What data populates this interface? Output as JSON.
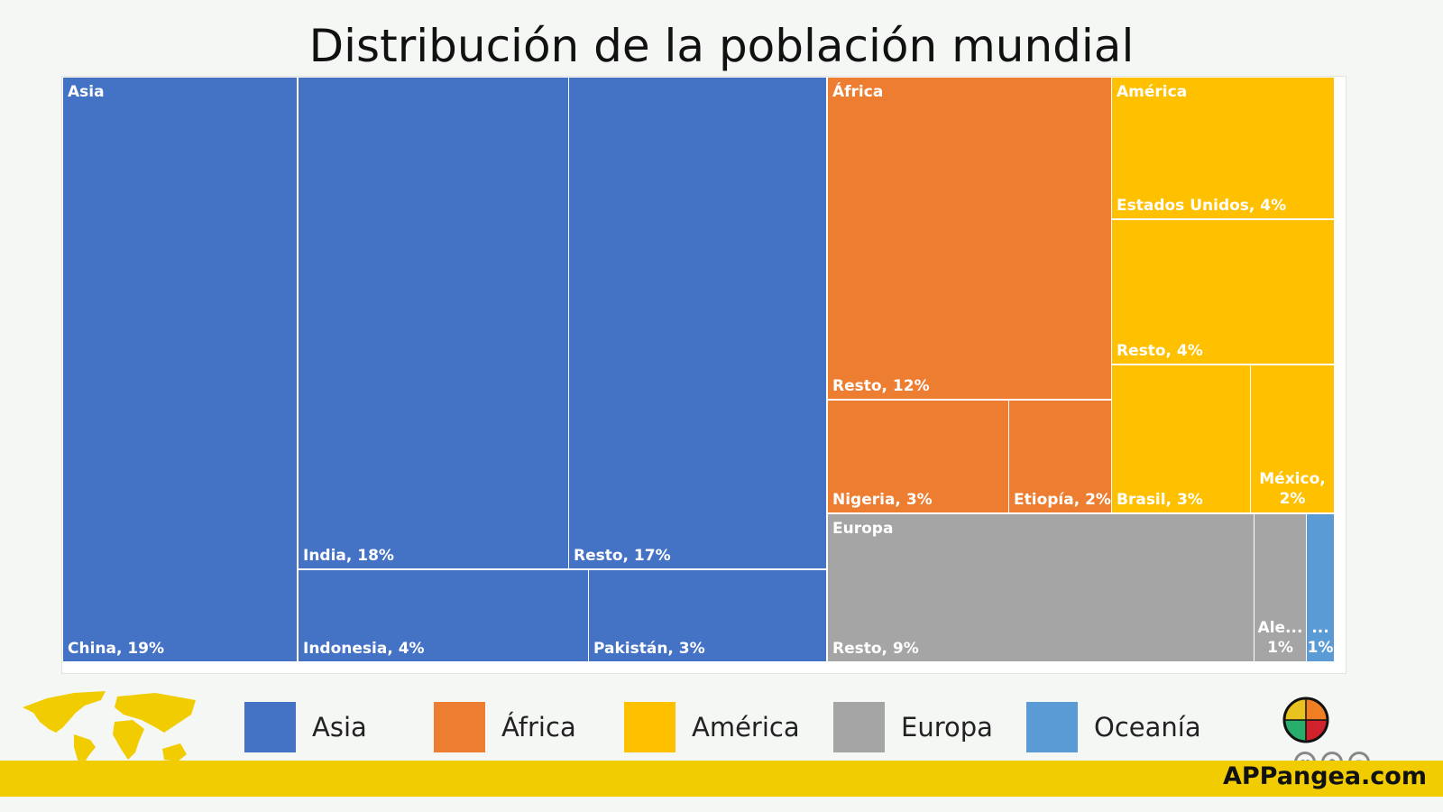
{
  "title": "Distribución de la población mundial",
  "chart_data": {
    "type": "treemap",
    "title": "Distribución de la población mundial",
    "groups": [
      {
        "name": "Asia",
        "color": "#4472c4",
        "items": [
          {
            "label": "China, 19%",
            "value": 19
          },
          {
            "label": "India, 18%",
            "value": 18
          },
          {
            "label": "Resto, 17%",
            "value": 17
          },
          {
            "label": "Indonesia, 4%",
            "value": 4
          },
          {
            "label": "Pakistán, 3%",
            "value": 3
          }
        ]
      },
      {
        "name": "África",
        "color": "#ed7d31",
        "items": [
          {
            "label": "Resto, 12%",
            "value": 12
          },
          {
            "label": "Nigeria, 3%",
            "value": 3
          },
          {
            "label": "Etiopía, 2%",
            "value": 2
          }
        ]
      },
      {
        "name": "América",
        "color": "#ffc000",
        "items": [
          {
            "label": "Estados Unidos, 4%",
            "value": 4
          },
          {
            "label": "Resto, 4%",
            "value": 4
          },
          {
            "label": "Brasil, 3%",
            "value": 3
          },
          {
            "label": "México, 2%",
            "l1": "México,",
            "l2": "2%",
            "value": 2
          }
        ]
      },
      {
        "name": "Europa",
        "color": "#a5a5a5",
        "items": [
          {
            "label": "Resto, 9%",
            "value": 9
          },
          {
            "label": "Ale... 1%",
            "l1": "Ale...",
            "l2": "1%",
            "value": 1
          }
        ]
      },
      {
        "name": "Oceanía",
        "color": "#5b9bd5",
        "items": [
          {
            "label": "... 1%",
            "l1": "...",
            "l2": "1%",
            "value": 1
          }
        ]
      }
    ],
    "legend": [
      "Asia",
      "África",
      "América",
      "Europa",
      "Oceanía"
    ],
    "legend_position": "bottom"
  },
  "brand": "APPangea.com",
  "license": [
    "cc",
    "by",
    "nd"
  ]
}
